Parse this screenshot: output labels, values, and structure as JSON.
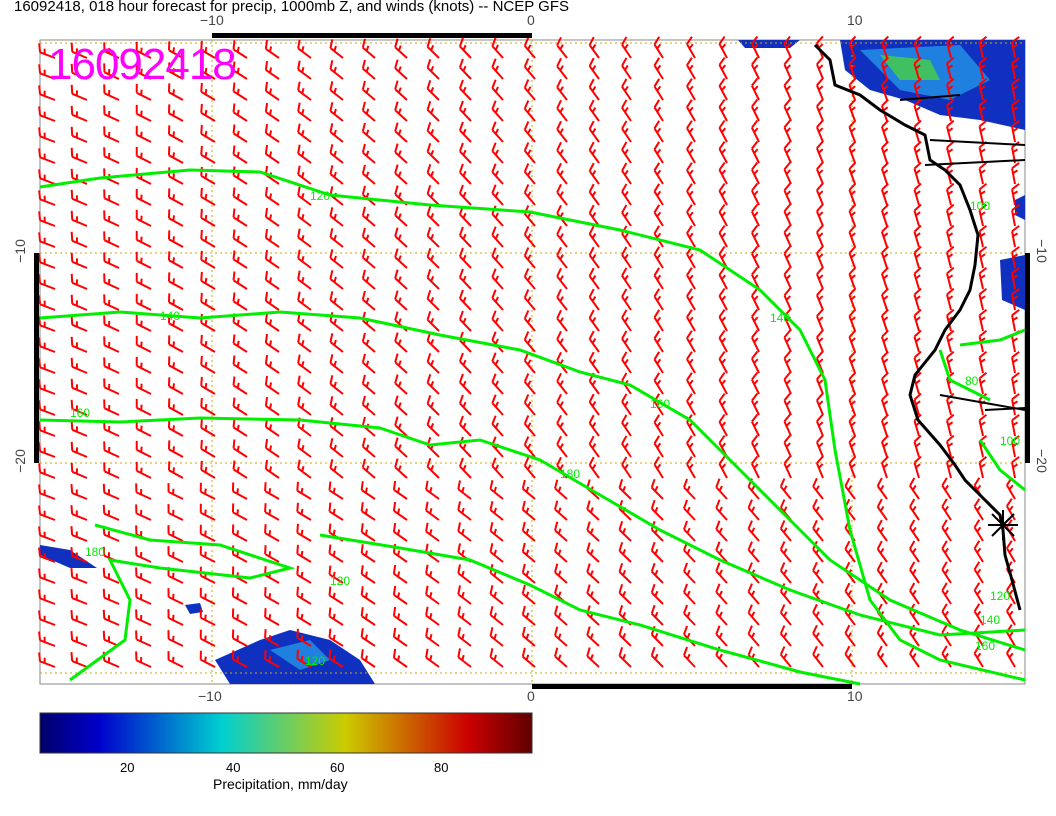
{
  "title": "16092418, 018 hour forecast for precip, 1000mb Z, and winds (knots) -- NCEP GFS",
  "stamp": "16092418",
  "axes": {
    "lon_ticks": [
      "−10",
      "0",
      "10"
    ],
    "lat_ticks": [
      "−10",
      "−20"
    ],
    "lon_range": [
      -15.4,
      15.4
    ],
    "lat_range": [
      -30.5,
      0
    ]
  },
  "contours": {
    "color": "#00ee00",
    "labels": [
      "120",
      "140",
      "160",
      "180",
      "120",
      "140",
      "160",
      "180",
      "120",
      "100",
      "80",
      "100",
      "120",
      "140",
      "160"
    ]
  },
  "wind_barb_color": "#ff0000",
  "colorbar": {
    "label": "Precipitation, mm/day",
    "ticks": [
      "20",
      "40",
      "60",
      "80"
    ],
    "range": [
      3,
      97
    ]
  },
  "grid_color": "#ccaa00"
}
